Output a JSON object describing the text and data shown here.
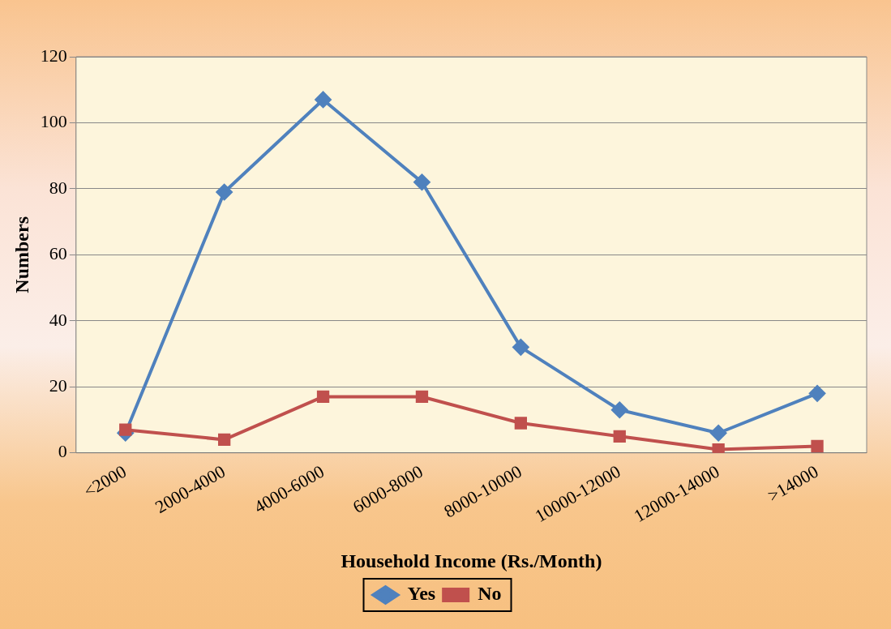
{
  "chart_data": {
    "type": "line",
    "xlabel": "Household Income (Rs./Month)",
    "ylabel": "Numbers",
    "categories": [
      "<2000",
      "2000-4000",
      "4000-6000",
      "6000-8000",
      "8000-10000",
      "10000-12000",
      "12000-14000",
      ">14000"
    ],
    "series": [
      {
        "name": "Yes",
        "color": "#4f81bd",
        "marker": "diamond",
        "values": [
          6,
          79,
          107,
          82,
          32,
          13,
          6,
          18
        ]
      },
      {
        "name": "No",
        "color": "#c0504d",
        "marker": "square",
        "values": [
          7,
          4,
          17,
          17,
          9,
          5,
          1,
          2
        ]
      }
    ],
    "ylim": [
      0,
      120
    ],
    "yticks": [
      0,
      20,
      40,
      60,
      80,
      100,
      120
    ],
    "grid": "y",
    "legend": "bottom",
    "line_style": "solid"
  }
}
